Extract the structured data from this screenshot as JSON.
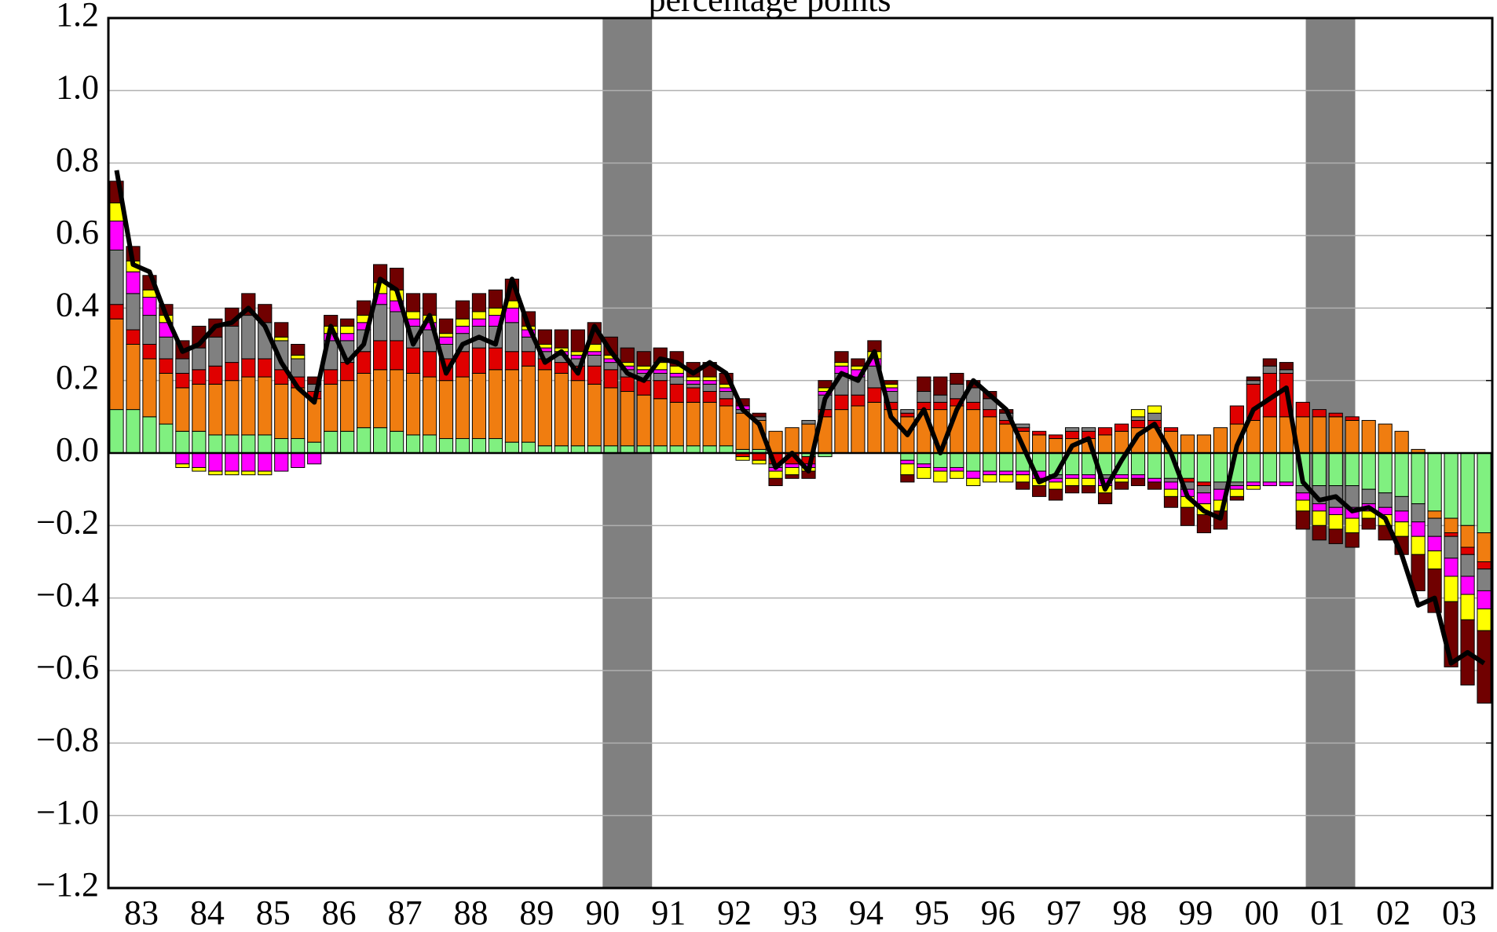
{
  "chart_data": {
    "type": "stacked-bar-line",
    "subtitle": "percentage points",
    "xlim": [
      1983,
      2004
    ],
    "xticks": [
      {
        "value": 1983.5,
        "label": "83"
      },
      {
        "value": 1984.5,
        "label": "84"
      },
      {
        "value": 1985.5,
        "label": "85"
      },
      {
        "value": 1986.5,
        "label": "86"
      },
      {
        "value": 1987.5,
        "label": "87"
      },
      {
        "value": 1988.5,
        "label": "88"
      },
      {
        "value": 1989.5,
        "label": "89"
      },
      {
        "value": 1990.5,
        "label": "90"
      },
      {
        "value": 1991.5,
        "label": "91"
      },
      {
        "value": 1992.5,
        "label": "92"
      },
      {
        "value": 1993.5,
        "label": "93"
      },
      {
        "value": 1994.5,
        "label": "94"
      },
      {
        "value": 1995.5,
        "label": "95"
      },
      {
        "value": 1996.5,
        "label": "96"
      },
      {
        "value": 1997.5,
        "label": "97"
      },
      {
        "value": 1998.5,
        "label": "98"
      },
      {
        "value": 1999.5,
        "label": "99"
      },
      {
        "value": 2000.5,
        "label": "00"
      },
      {
        "value": 2001.5,
        "label": "01"
      },
      {
        "value": 2002.5,
        "label": "02"
      },
      {
        "value": 2003.5,
        "label": "03"
      }
    ],
    "ylim": [
      -1.2,
      1.2
    ],
    "yticks": [
      {
        "value": -1.2,
        "label": "−1.2"
      },
      {
        "value": -1.0,
        "label": "−1.0"
      },
      {
        "value": -0.8,
        "label": "−0.8"
      },
      {
        "value": -0.6,
        "label": "−0.6"
      },
      {
        "value": -0.4,
        "label": "−0.4"
      },
      {
        "value": -0.2,
        "label": "−0.2"
      },
      {
        "value": 0,
        "label": "0.0"
      },
      {
        "value": 0.2,
        "label": "0.2"
      },
      {
        "value": 0.4,
        "label": "0.4"
      },
      {
        "value": 0.6,
        "label": "0.6"
      },
      {
        "value": 0.8,
        "label": "0.8"
      },
      {
        "value": 1.0,
        "label": "1.0"
      },
      {
        "value": 1.2,
        "label": "1.2"
      }
    ],
    "grid": true,
    "recessions": [
      [
        1990.5,
        1991.25
      ],
      [
        2001.17,
        2001.92
      ]
    ],
    "recession_color": "#808080",
    "x": [
      1983.125,
      1983.375,
      1983.625,
      1983.875,
      1984.125,
      1984.375,
      1984.625,
      1984.875,
      1985.125,
      1985.375,
      1985.625,
      1985.875,
      1986.125,
      1986.375,
      1986.625,
      1986.875,
      1987.125,
      1987.375,
      1987.625,
      1987.875,
      1988.125,
      1988.375,
      1988.625,
      1988.875,
      1989.125,
      1989.375,
      1989.625,
      1989.875,
      1990.125,
      1990.375,
      1990.625,
      1990.875,
      1991.125,
      1991.375,
      1991.625,
      1991.875,
      1992.125,
      1992.375,
      1992.625,
      1992.875,
      1993.125,
      1993.375,
      1993.625,
      1993.875,
      1994.125,
      1994.375,
      1994.625,
      1994.875,
      1995.125,
      1995.375,
      1995.625,
      1995.875,
      1996.125,
      1996.375,
      1996.625,
      1996.875,
      1997.125,
      1997.375,
      1997.625,
      1997.875,
      1998.125,
      1998.375,
      1998.625,
      1998.875,
      1999.125,
      1999.375,
      1999.625,
      1999.875,
      2000.125,
      2000.375,
      2000.625,
      2000.875,
      2001.125,
      2001.375,
      2001.625,
      2001.875,
      2002.125,
      2002.375,
      2002.625,
      2002.875,
      2003.125,
      2003.375,
      2003.625,
      2003.875
    ],
    "series": [
      {
        "color": "#80f080",
        "values": [
          0.12,
          0.12,
          0.1,
          0.08,
          0.06,
          0.06,
          0.05,
          0.05,
          0.05,
          0.05,
          0.04,
          0.04,
          0.03,
          0.06,
          0.06,
          0.07,
          0.07,
          0.06,
          0.05,
          0.05,
          0.04,
          0.04,
          0.04,
          0.04,
          0.03,
          0.03,
          0.02,
          0.02,
          0.02,
          0.02,
          0.02,
          0.02,
          0.02,
          0.02,
          0.02,
          0.02,
          0.02,
          0.02,
          0.01,
          0.01,
          0,
          0,
          -0.01,
          -0.01,
          0,
          0,
          0,
          0,
          -0.02,
          -0.03,
          -0.04,
          -0.04,
          -0.05,
          -0.05,
          -0.05,
          -0.05,
          -0.05,
          -0.06,
          -0.06,
          -0.06,
          -0.06,
          -0.06,
          -0.06,
          -0.07,
          -0.07,
          -0.07,
          -0.08,
          -0.08,
          -0.08,
          -0.08,
          -0.08,
          -0.08,
          -0.09,
          -0.09,
          -0.09,
          -0.09,
          -0.1,
          -0.11,
          -0.12,
          -0.14,
          -0.16,
          -0.18,
          -0.2,
          -0.22
        ]
      },
      {
        "color": "#f07d10",
        "values": [
          0.25,
          0.18,
          0.16,
          0.14,
          0.12,
          0.13,
          0.14,
          0.15,
          0.16,
          0.16,
          0.15,
          0.14,
          0.12,
          0.13,
          0.14,
          0.15,
          0.16,
          0.17,
          0.17,
          0.16,
          0.16,
          0.17,
          0.18,
          0.19,
          0.2,
          0.21,
          0.21,
          0.2,
          0.18,
          0.17,
          0.16,
          0.15,
          0.14,
          0.13,
          0.12,
          0.12,
          0.12,
          0.11,
          0.1,
          0.08,
          0.06,
          0.07,
          0.08,
          0.1,
          0.12,
          0.13,
          0.14,
          0.12,
          0.1,
          0.12,
          0.12,
          0.13,
          0.12,
          0.1,
          0.08,
          0.06,
          0.05,
          0.04,
          0.04,
          0.04,
          0.05,
          0.06,
          0.07,
          0.07,
          0.06,
          0.05,
          0.05,
          0.07,
          0.08,
          0.09,
          0.1,
          0.1,
          0.1,
          0.1,
          0.1,
          0.09,
          0.09,
          0.08,
          0.06,
          0.01,
          -0.02,
          -0.04,
          -0.06,
          -0.08
        ]
      },
      {
        "color": "#e00000",
        "values": [
          0.04,
          0.04,
          0.04,
          0.04,
          0.04,
          0.04,
          0.05,
          0.05,
          0.05,
          0.05,
          0.04,
          0.03,
          0.02,
          0.04,
          0.05,
          0.06,
          0.08,
          0.08,
          0.07,
          0.07,
          0.06,
          0.07,
          0.07,
          0.06,
          0.05,
          0.04,
          0.03,
          0.03,
          0.04,
          0.05,
          0.05,
          0.04,
          0.04,
          0.05,
          0.05,
          0.04,
          0.03,
          0.02,
          -0.01,
          -0.02,
          -0.03,
          -0.03,
          -0.02,
          0.02,
          0.04,
          0.03,
          0.04,
          0.02,
          0.01,
          0.02,
          0.02,
          0.02,
          0.02,
          0.02,
          0.01,
          0.01,
          0.01,
          0.01,
          0.02,
          0.02,
          0.02,
          0.02,
          0.02,
          0.02,
          0.01,
          -0.01,
          -0.01,
          0,
          0.05,
          0.1,
          0.12,
          0.12,
          0.04,
          0.02,
          0.01,
          0.01,
          0,
          0,
          0,
          0,
          0,
          -0.01,
          -0.02,
          -0.02
        ]
      },
      {
        "color": "#808080",
        "values": [
          0.15,
          0.1,
          0.08,
          0.06,
          0.04,
          0.06,
          0.08,
          0.1,
          0.12,
          0.1,
          0.08,
          0.05,
          0.02,
          0.08,
          0.06,
          0.06,
          0.1,
          0.08,
          0.06,
          0.06,
          0.04,
          0.05,
          0.06,
          0.06,
          0.08,
          0.04,
          0.02,
          0.02,
          0.02,
          0.03,
          0.02,
          0.02,
          0.02,
          0.02,
          0.02,
          0.01,
          0.02,
          0.02,
          0.01,
          0.01,
          -0.01,
          0,
          0.01,
          0.04,
          0.06,
          0.05,
          0.06,
          0.03,
          0.01,
          0.03,
          0.02,
          0.04,
          0.04,
          0.03,
          0.02,
          0.01,
          0,
          -0.01,
          0.01,
          0.01,
          -0.01,
          0,
          0.01,
          0.02,
          -0.01,
          -0.02,
          -0.02,
          -0.02,
          -0.01,
          0.01,
          0.02,
          0.01,
          -0.02,
          -0.05,
          -0.06,
          -0.06,
          -0.04,
          -0.04,
          -0.04,
          -0.05,
          -0.05,
          -0.06,
          -0.06,
          -0.06
        ]
      },
      {
        "color": "#ff00ff",
        "values": [
          0.08,
          0.06,
          0.05,
          0.04,
          -0.03,
          -0.04,
          -0.05,
          -0.05,
          -0.05,
          -0.05,
          -0.05,
          -0.04,
          -0.03,
          0.02,
          0.02,
          0.02,
          0.03,
          0.03,
          0.02,
          0.02,
          0.02,
          0.02,
          0.02,
          0.03,
          0.04,
          0.02,
          0.01,
          0.01,
          0.01,
          0.01,
          0.01,
          0.01,
          0.01,
          0.01,
          0.01,
          0.01,
          0.01,
          0.01,
          0.01,
          0,
          -0.01,
          -0.01,
          -0.01,
          0.01,
          0.02,
          0.02,
          0.02,
          0.01,
          -0.01,
          -0.01,
          -0.01,
          -0.01,
          -0.02,
          -0.01,
          -0.01,
          -0.01,
          -0.02,
          -0.01,
          -0.01,
          -0.01,
          -0.02,
          -0.01,
          -0.01,
          -0.01,
          -0.02,
          -0.02,
          -0.03,
          -0.03,
          -0.01,
          -0.01,
          -0.01,
          -0.01,
          -0.02,
          -0.02,
          -0.02,
          -0.03,
          -0.02,
          -0.02,
          -0.03,
          -0.04,
          -0.04,
          -0.05,
          -0.05,
          -0.05
        ]
      },
      {
        "color": "#ffff00",
        "values": [
          0.05,
          0.03,
          0.02,
          0.02,
          -0.01,
          -0.01,
          -0.01,
          -0.01,
          -0.01,
          -0.01,
          0.01,
          0.01,
          0,
          0.02,
          0.02,
          0.02,
          0.03,
          0.03,
          0.02,
          0.02,
          0.01,
          0.02,
          0.02,
          0.02,
          0.02,
          0.01,
          0.01,
          0.01,
          0.01,
          0.02,
          0.01,
          0.01,
          0.01,
          0.02,
          0.02,
          0.01,
          0.01,
          0.01,
          -0.01,
          -0.01,
          -0.02,
          -0.02,
          -0.01,
          0.01,
          0.01,
          0.01,
          0.02,
          0.01,
          -0.03,
          -0.03,
          -0.03,
          -0.02,
          -0.02,
          -0.02,
          -0.02,
          -0.02,
          -0.02,
          -0.02,
          -0.02,
          -0.02,
          -0.02,
          -0.01,
          0.02,
          0.02,
          -0.02,
          -0.03,
          -0.03,
          -0.03,
          -0.02,
          -0.01,
          0,
          0,
          -0.03,
          -0.04,
          -0.04,
          -0.04,
          -0.02,
          -0.03,
          -0.04,
          -0.05,
          -0.05,
          -0.07,
          -0.07,
          -0.06
        ]
      },
      {
        "color": "#700000",
        "values": [
          0.06,
          0.04,
          0.04,
          0.03,
          0.05,
          0.06,
          0.05,
          0.05,
          0.06,
          0.05,
          0.04,
          0.03,
          0.02,
          0.03,
          0.02,
          0.04,
          0.05,
          0.06,
          0.05,
          0.06,
          0.04,
          0.05,
          0.05,
          0.05,
          0.06,
          0.04,
          0.04,
          0.05,
          0.06,
          0.06,
          0.05,
          0.04,
          0.04,
          0.04,
          0.04,
          0.04,
          0.04,
          0.03,
          0.02,
          0.01,
          -0.02,
          -0.01,
          -0.02,
          0.02,
          0.03,
          0.02,
          0.03,
          0.01,
          -0.02,
          0.04,
          0.05,
          0.03,
          0.02,
          0.02,
          0.01,
          -0.02,
          -0.03,
          -0.03,
          -0.02,
          -0.02,
          -0.03,
          -0.02,
          -0.02,
          -0.02,
          -0.03,
          -0.05,
          -0.05,
          -0.05,
          -0.01,
          0.01,
          0.02,
          0.02,
          -0.05,
          -0.04,
          -0.04,
          -0.04,
          -0.03,
          -0.04,
          -0.05,
          -0.1,
          -0.12,
          -0.18,
          -0.18,
          -0.2
        ]
      }
    ],
    "line": {
      "color": "#000000",
      "values": [
        0.78,
        0.52,
        0.5,
        0.38,
        0.28,
        0.3,
        0.35,
        0.36,
        0.4,
        0.35,
        0.25,
        0.18,
        0.14,
        0.35,
        0.25,
        0.3,
        0.48,
        0.45,
        0.3,
        0.38,
        0.22,
        0.3,
        0.32,
        0.3,
        0.48,
        0.35,
        0.25,
        0.28,
        0.22,
        0.35,
        0.28,
        0.22,
        0.2,
        0.26,
        0.25,
        0.22,
        0.25,
        0.22,
        0.12,
        0.08,
        -0.04,
        0,
        -0.05,
        0.15,
        0.22,
        0.2,
        0.28,
        0.1,
        0.05,
        0.12,
        0,
        0.12,
        0.2,
        0.16,
        0.12,
        0.02,
        -0.08,
        -0.06,
        0.02,
        0.04,
        -0.1,
        -0.02,
        0.05,
        0.08,
        0,
        -0.12,
        -0.16,
        -0.18,
        0.02,
        0.12,
        0.15,
        0.18,
        -0.08,
        -0.13,
        -0.12,
        -0.16,
        -0.15,
        -0.18,
        -0.28,
        -0.42,
        -0.4,
        -0.58,
        -0.55,
        -0.58
      ]
    }
  }
}
